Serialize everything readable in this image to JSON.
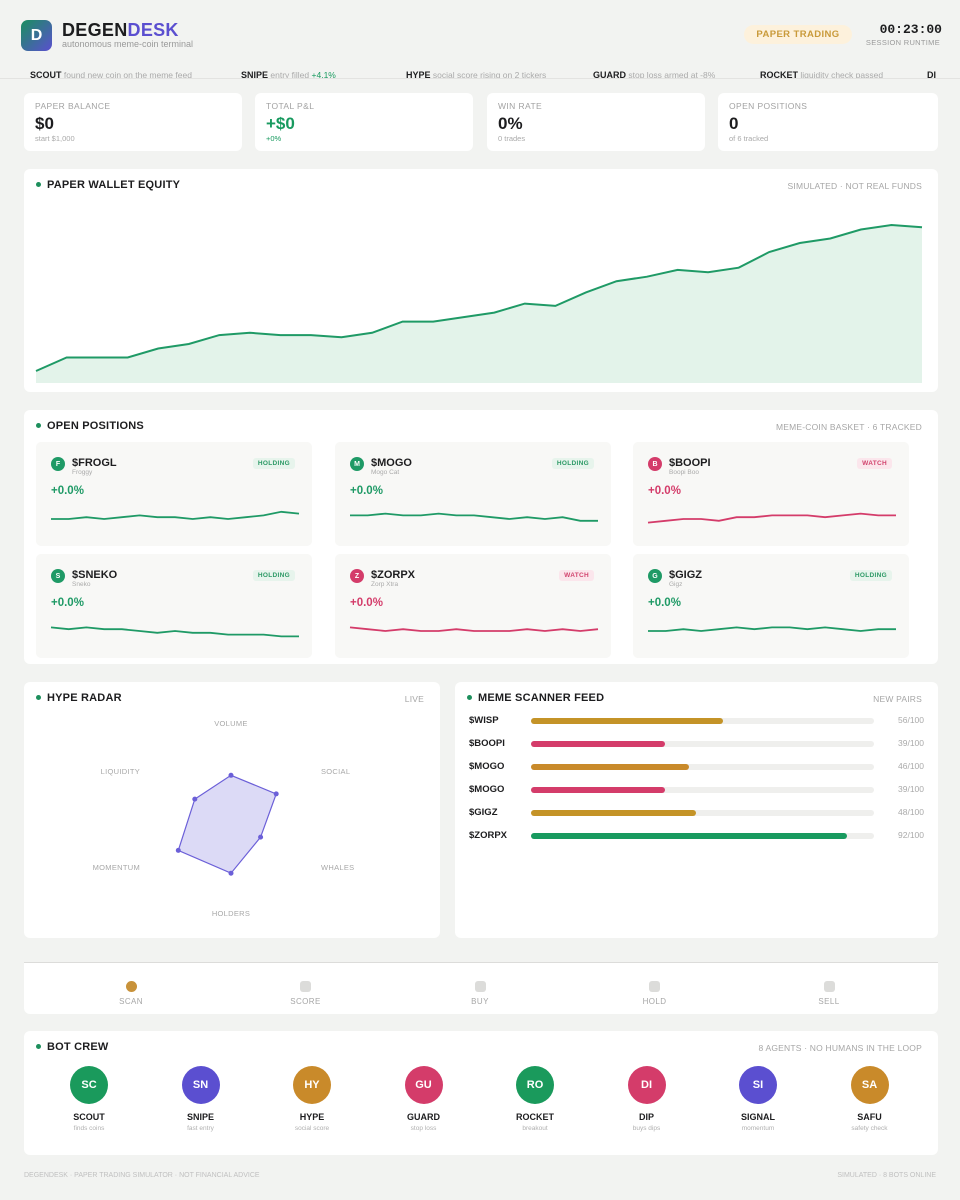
{
  "header": {
    "logo_letter": "D",
    "brand_a": "DEGEN",
    "brand_b": "DESK",
    "tagline": "autonomous meme-coin terminal",
    "mode_pill": "PAPER TRADING",
    "clock": "00:23:00",
    "clock_label": "SESSION RUNTIME"
  },
  "ticker": [
    {
      "agent": "SCOUT",
      "text": "found new coin on the meme feed",
      "delta": ""
    },
    {
      "agent": "SNIPE",
      "text": "entry filled",
      "delta": "+4.1%"
    },
    {
      "agent": "HYPE",
      "text": "social score rising on 2 tickers",
      "delta": ""
    },
    {
      "agent": "GUARD",
      "text": "stop loss armed at -8%",
      "delta": ""
    },
    {
      "agent": "ROCKET",
      "text": "liquidity check passed",
      "delta": ""
    },
    {
      "agent": "DI",
      "text": "",
      "delta": ""
    }
  ],
  "stats": [
    {
      "label": "PAPER BALANCE",
      "value": "$0",
      "sub": "start $1,000",
      "accent": "#1d1d1f"
    },
    {
      "label": "TOTAL P&L",
      "value": "+$0",
      "sub": "+0%",
      "accent": "#189a5f"
    },
    {
      "label": "WIN RATE",
      "value": "0%",
      "sub": "0 trades",
      "accent": "#1d1d1f"
    },
    {
      "label": "OPEN POSITIONS",
      "value": "0",
      "sub": "of 6 tracked",
      "accent": "#1d1d1f"
    }
  ],
  "equity": {
    "title": "PAPER WALLET EQUITY",
    "note": "SIMULATED · NOT REAL FUNDS",
    "color": "#1f9a66",
    "values": [
      0,
      6,
      6,
      6,
      10,
      12,
      16,
      17,
      16,
      16,
      15,
      17,
      22,
      22,
      24,
      26,
      30,
      29,
      35,
      40,
      42,
      45,
      44,
      46,
      53,
      57,
      59,
      63,
      65,
      64
    ]
  },
  "positions": {
    "title": "OPEN POSITIONS",
    "note": "MEME-COIN BASKET · 6 TRACKED",
    "items": [
      {
        "letter": "F",
        "ticker": "$FROGL",
        "name": "Froggy",
        "badge": "HOLDING",
        "status": "hold",
        "change": "+0.0%",
        "color": "#1f9a66",
        "spark": [
          5,
          5,
          4,
          5,
          4,
          3,
          4,
          4,
          5,
          4,
          5,
          4,
          3,
          1,
          2
        ]
      },
      {
        "letter": "M",
        "ticker": "$MOGO",
        "name": "Mogo Cat",
        "badge": "HOLDING",
        "status": "hold",
        "change": "+0.0%",
        "color": "#1f9a66",
        "spark": [
          3,
          3,
          2,
          3,
          3,
          2,
          3,
          3,
          4,
          5,
          4,
          5,
          4,
          6,
          6
        ]
      },
      {
        "letter": "B",
        "ticker": "$BOOPI",
        "name": "Boopi Boo",
        "badge": "WATCH",
        "status": "watch",
        "change": "+0.0%",
        "color": "#d43c6a",
        "spark": [
          7,
          6,
          5,
          5,
          6,
          4,
          4,
          3,
          3,
          3,
          4,
          3,
          2,
          3,
          3
        ]
      },
      {
        "letter": "S",
        "ticker": "$SNEKO",
        "name": "Sneko",
        "badge": "HOLDING",
        "status": "hold",
        "change": "+0.0%",
        "color": "#1f9a66",
        "spark": [
          3,
          4,
          3,
          4,
          4,
          5,
          6,
          5,
          6,
          6,
          7,
          7,
          7,
          8,
          8
        ]
      },
      {
        "letter": "Z",
        "ticker": "$ZORPX",
        "name": "Zorp Xtra",
        "badge": "WATCH",
        "status": "watch",
        "change": "+0.0%",
        "color": "#d43c6a",
        "spark": [
          3,
          4,
          5,
          4,
          5,
          5,
          4,
          5,
          5,
          5,
          4,
          5,
          4,
          5,
          4
        ]
      },
      {
        "letter": "G",
        "ticker": "$GIGZ",
        "name": "Gigz",
        "badge": "HOLDING",
        "status": "hold",
        "change": "+0.0%",
        "color": "#1f9a66",
        "spark": [
          5,
          5,
          4,
          5,
          4,
          3,
          4,
          3,
          3,
          4,
          3,
          4,
          5,
          4,
          4
        ]
      }
    ]
  },
  "radar": {
    "title": "HYPE RADAR",
    "note": "LIVE",
    "axes": [
      "VOLUME",
      "SOCIAL",
      "WHALES",
      "HOLDERS",
      "MOMENTUM",
      "LIQUIDITY"
    ],
    "values": [
      0.47,
      0.55,
      0.36,
      0.56,
      0.64,
      0.44
    ]
  },
  "scanner": {
    "title": "MEME SCANNER FEED",
    "note": "NEW PAIRS",
    "rows": [
      {
        "ticker": "$WISP",
        "score": 56,
        "score_text": "56/100",
        "color": "#c49327"
      },
      {
        "ticker": "$BOOPI",
        "score": 39,
        "score_text": "39/100",
        "color": "#d43c6a"
      },
      {
        "ticker": "$MOGO",
        "score": 46,
        "score_text": "46/100",
        "color": "#c98a2a"
      },
      {
        "ticker": "$MOGO",
        "score": 39,
        "score_text": "39/100",
        "color": "#d43c6a"
      },
      {
        "ticker": "$GIGZ",
        "score": 48,
        "score_text": "48/100",
        "color": "#c49327"
      },
      {
        "ticker": "$ZORPX",
        "score": 92,
        "score_text": "92/100",
        "color": "#189a5f"
      }
    ]
  },
  "pipeline": [
    "SCAN",
    "SCORE",
    "BUY",
    "HOLD",
    "SELL"
  ],
  "crew": {
    "title": "BOT CREW",
    "note": "8 AGENTS · NO HUMANS IN THE LOOP",
    "bots": [
      {
        "initials": "SC",
        "name": "SCOUT",
        "role": "finds coins",
        "color": "#1a9a5c"
      },
      {
        "initials": "SN",
        "name": "SNIPE",
        "role": "fast entry",
        "color": "#5b4fd0"
      },
      {
        "initials": "HY",
        "name": "HYPE",
        "role": "social score",
        "color": "#c98a2a"
      },
      {
        "initials": "GU",
        "name": "GUARD",
        "role": "stop loss",
        "color": "#d43c6a"
      },
      {
        "initials": "RO",
        "name": "ROCKET",
        "role": "breakout",
        "color": "#1a9a5c"
      },
      {
        "initials": "DI",
        "name": "DIP",
        "role": "buys dips",
        "color": "#d43c6a"
      },
      {
        "initials": "SI",
        "name": "SIGNAL",
        "role": "momentum",
        "color": "#5b4fd0"
      },
      {
        "initials": "SA",
        "name": "SAFU",
        "role": "safety check",
        "color": "#c98a2a"
      }
    ]
  },
  "footer": {
    "left": "DEGENDESK · PAPER TRADING SIMULATOR · NOT FINANCIAL ADVICE",
    "right": "SIMULATED · 8 BOTS ONLINE"
  }
}
